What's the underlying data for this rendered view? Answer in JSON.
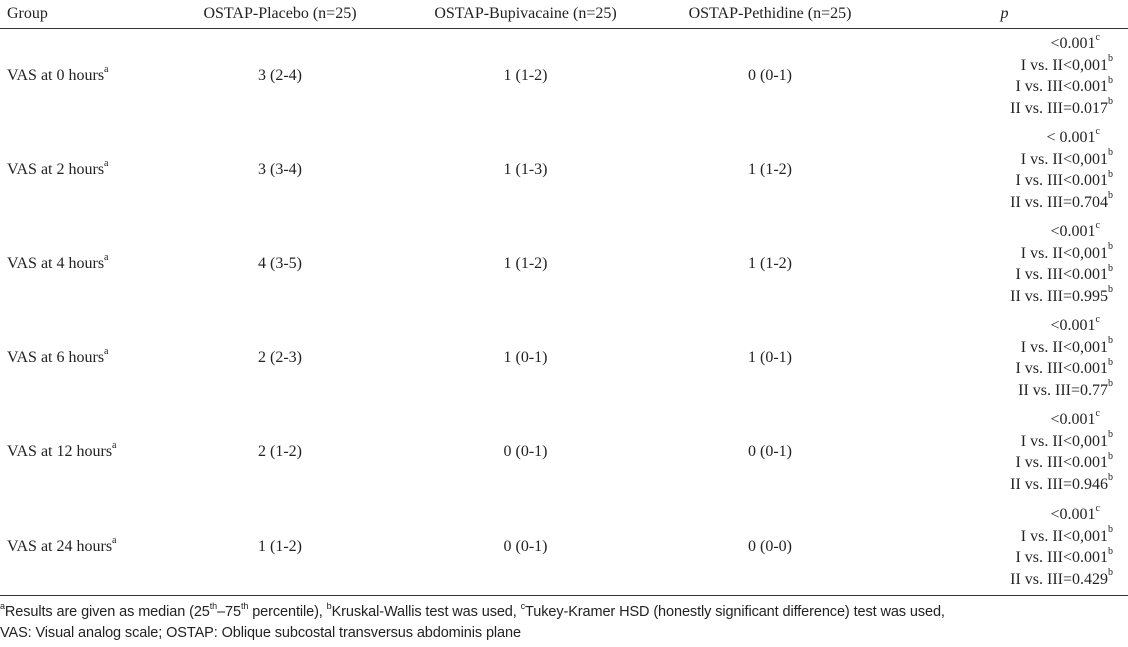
{
  "table": {
    "headers": [
      "Group",
      "OSTAP-Placebo (n=25)",
      "OSTAP-Bupivacaine (n=25)",
      "OSTAP-Pethidine (n=25)",
      "p"
    ],
    "rows": [
      {
        "label": "VAS at 0 hours",
        "label_sup": "a",
        "placebo": "3 (2-4)",
        "bupivacaine": "1 (1-2)",
        "pethidine": "0 (0-1)",
        "p": [
          {
            "text": "<0.001",
            "sup": "c"
          },
          {
            "text": "I vs. II<0,001",
            "sup": "b"
          },
          {
            "text": "I vs. III<0.001",
            "sup": "b"
          },
          {
            "text": "II vs. III=0.017",
            "sup": "b"
          }
        ]
      },
      {
        "label": "VAS at 2 hours",
        "label_sup": "a",
        "placebo": "3 (3-4)",
        "bupivacaine": "1 (1-3)",
        "pethidine": "1 (1-2)",
        "p": [
          {
            "text": "< 0.001",
            "sup": "c"
          },
          {
            "text": "I vs. II<0,001",
            "sup": "b"
          },
          {
            "text": "I vs. III<0.001",
            "sup": "b"
          },
          {
            "text": "II vs. III=0.704",
            "sup": "b"
          }
        ]
      },
      {
        "label": "VAS at 4 hours",
        "label_sup": "a",
        "placebo": "4 (3-5)",
        "bupivacaine": "1 (1-2)",
        "pethidine": "1 (1-2)",
        "p": [
          {
            "text": "<0.001",
            "sup": "c"
          },
          {
            "text": "I vs. II<0,001",
            "sup": "b"
          },
          {
            "text": "I vs. III<0.001",
            "sup": "b"
          },
          {
            "text": "II vs. III=0.995",
            "sup": "b"
          }
        ]
      },
      {
        "label": "VAS at 6 hours",
        "label_sup": "a",
        "placebo": "2 (2-3)",
        "bupivacaine": "1 (0-1)",
        "pethidine": "1 (0-1)",
        "p": [
          {
            "text": "<0.001",
            "sup": "c"
          },
          {
            "text": "I vs. II<0,001",
            "sup": "b"
          },
          {
            "text": "I vs. III<0.001",
            "sup": "b"
          },
          {
            "text": "II vs. III=0.77",
            "sup": "b"
          }
        ]
      },
      {
        "label": "VAS at 12 hours",
        "label_sup": "a",
        "placebo": "2 (1-2)",
        "bupivacaine": "0 (0-1)",
        "pethidine": "0 (0-1)",
        "p": [
          {
            "text": "<0.001",
            "sup": "c"
          },
          {
            "text": "I vs. II<0,001",
            "sup": "b"
          },
          {
            "text": "I vs. III<0.001",
            "sup": "b"
          },
          {
            "text": "II vs. III=0.946",
            "sup": "b"
          }
        ]
      },
      {
        "label": "VAS at 24 hours",
        "label_sup": "a",
        "placebo": "1 (1-2)",
        "bupivacaine": "0 (0-1)",
        "pethidine": "0 (0-0)",
        "p": [
          {
            "text": "<0.001",
            "sup": "c"
          },
          {
            "text": "I vs. II<0,001",
            "sup": "b"
          },
          {
            "text": "I vs. III<0.001",
            "sup": "b"
          },
          {
            "text": "II vs. III=0.429",
            "sup": "b"
          }
        ]
      }
    ]
  },
  "footnote": {
    "a_mark": "a",
    "a_text_1": "Results are given as median (25",
    "a_sup_1": "th",
    "a_text_2": "–75",
    "a_sup_2": "th",
    "a_text_3": " percentile), ",
    "b_mark": "b",
    "b_text": "Kruskal-Wallis test was used, ",
    "c_mark": "c",
    "c_text": "Tukey-Kramer HSD (honestly significant difference) test was used,",
    "line2": "VAS: Visual analog scale; OSTAP: Oblique subcostal transversus abdominis plane"
  }
}
